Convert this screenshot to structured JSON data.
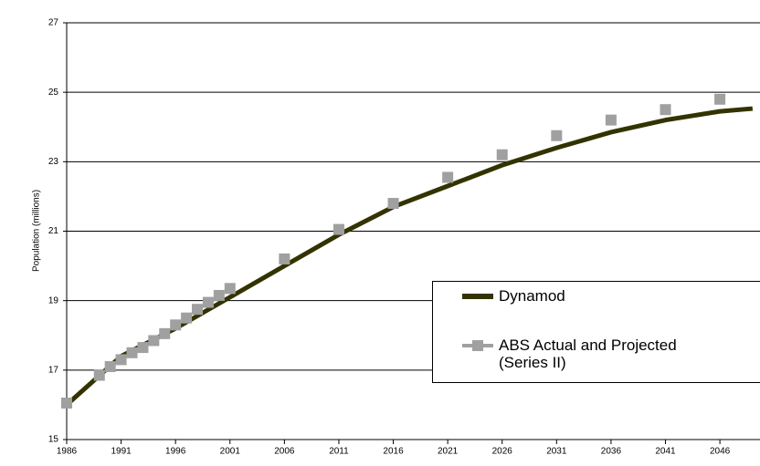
{
  "chart_data": {
    "type": "line",
    "y_label": "Population (millions)",
    "xlim": [
      1986,
      2049.6
    ],
    "ylim": [
      15,
      27
    ],
    "xticks": [
      1986,
      1991,
      1996,
      2001,
      2006,
      2011,
      2016,
      2021,
      2026,
      2031,
      2036,
      2041,
      2046
    ],
    "yticks": [
      15,
      17,
      19,
      21,
      23,
      25,
      27
    ],
    "grid": true,
    "series": [
      {
        "name": "Dynamod",
        "color": "#333300",
        "style": "line",
        "x": [
          1986,
          1991,
          1996,
          2001,
          2006,
          2011,
          2016,
          2021,
          2026,
          2031,
          2036,
          2041,
          2046,
          2049
        ],
        "values": [
          16.0,
          17.4,
          18.2,
          19.1,
          20.0,
          20.9,
          21.7,
          22.3,
          22.9,
          23.4,
          23.85,
          24.2,
          24.45,
          24.53
        ]
      },
      {
        "name": "ABS Actual and Projected (Series II)",
        "color": "#a0a0a0",
        "style": "marker",
        "x": [
          1986,
          1989,
          1990,
          1991,
          1992,
          1993,
          1994,
          1995,
          1996,
          1997,
          1998,
          1999,
          2000,
          2001,
          2006,
          2011,
          2016,
          2021,
          2026,
          2031,
          2036,
          2041,
          2046
        ],
        "values": [
          16.05,
          16.85,
          17.1,
          17.3,
          17.5,
          17.65,
          17.85,
          18.05,
          18.3,
          18.5,
          18.75,
          18.95,
          19.15,
          19.35,
          20.2,
          21.05,
          21.8,
          22.55,
          23.2,
          23.75,
          24.2,
          24.5,
          24.8
        ]
      }
    ]
  }
}
